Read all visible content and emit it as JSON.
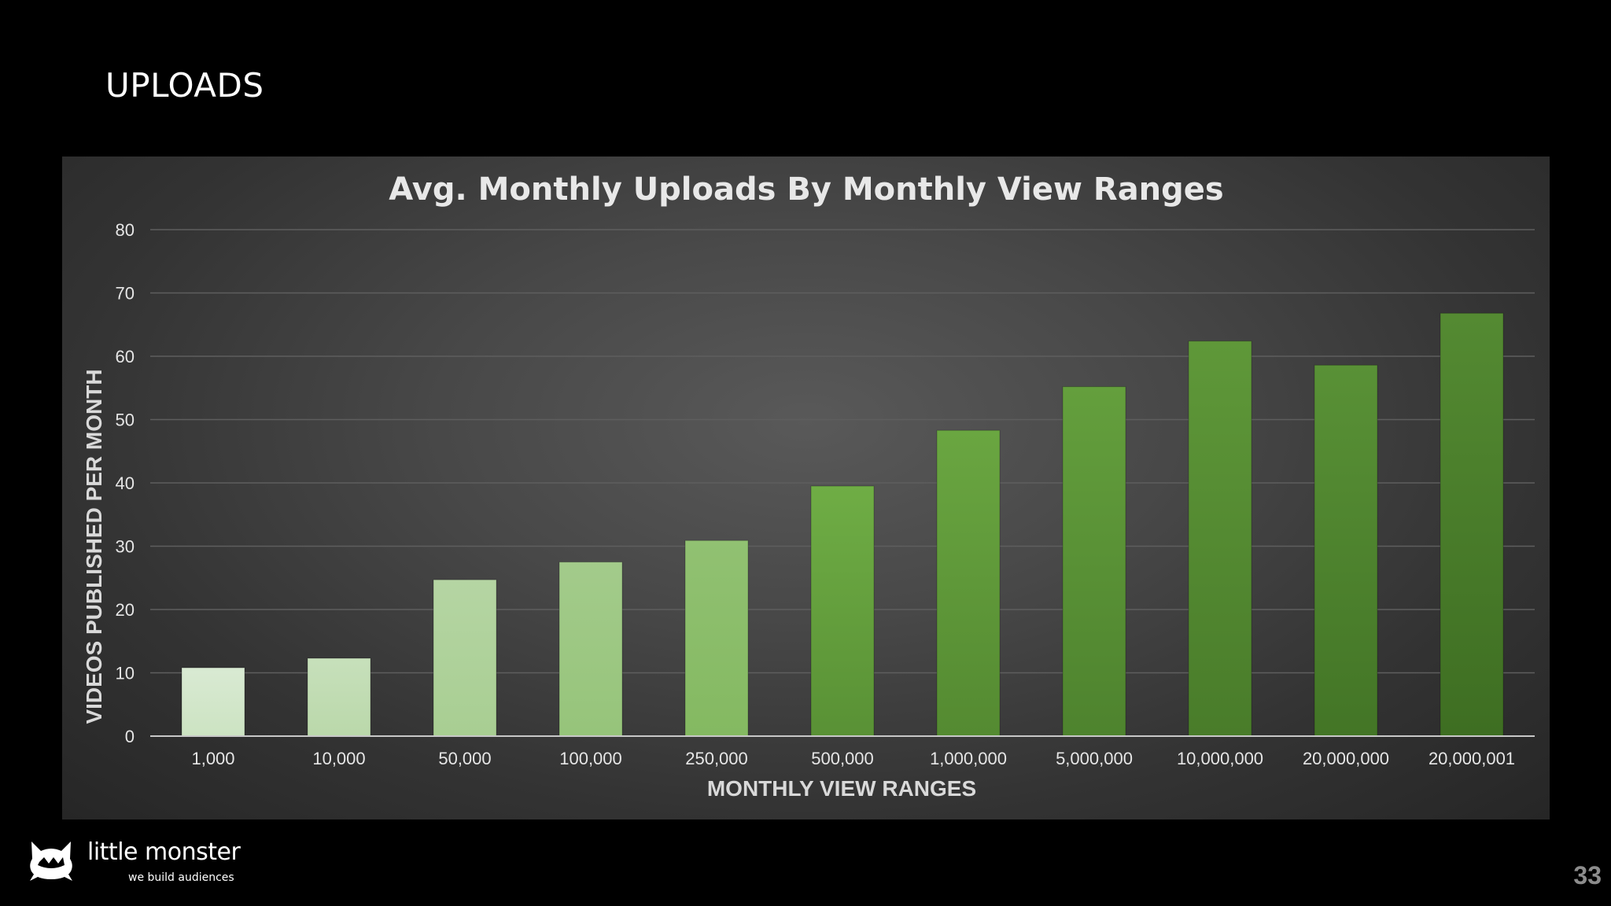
{
  "slide": {
    "title": "UPLOADS",
    "page_number": "33"
  },
  "brand": {
    "name": "little monster",
    "tagline": "we build audiences",
    "logo_icon": "monster-cat-icon"
  },
  "colors": {
    "background": "#000000",
    "bar_light": "#d9ead3",
    "bar_mid": "#6fad45",
    "bar_dark": "#3e6e22",
    "gridline": "#5e5e5e",
    "axis_text": "#e6e6e6"
  },
  "chart_data": {
    "type": "bar",
    "title": "Avg. Monthly Uploads By Monthly View Ranges",
    "xlabel": "MONTHLY VIEW RANGES",
    "ylabel": "VIDEOS PUBLISHED PER MONTH",
    "categories": [
      "1,000",
      "10,000",
      "50,000",
      "100,000",
      "250,000",
      "500,000",
      "1,000,000",
      "5,000,000",
      "10,000,000",
      "20,000,000",
      "20,000,001"
    ],
    "values": [
      10.8,
      12.3,
      24.7,
      27.5,
      30.9,
      39.5,
      48.3,
      55.2,
      62.4,
      58.6,
      66.8
    ],
    "ylim": [
      0,
      80
    ],
    "yticks": [
      "0",
      "10",
      "20",
      "30",
      "40",
      "50",
      "60",
      "70",
      "80"
    ],
    "grid": true,
    "legend": "none"
  }
}
